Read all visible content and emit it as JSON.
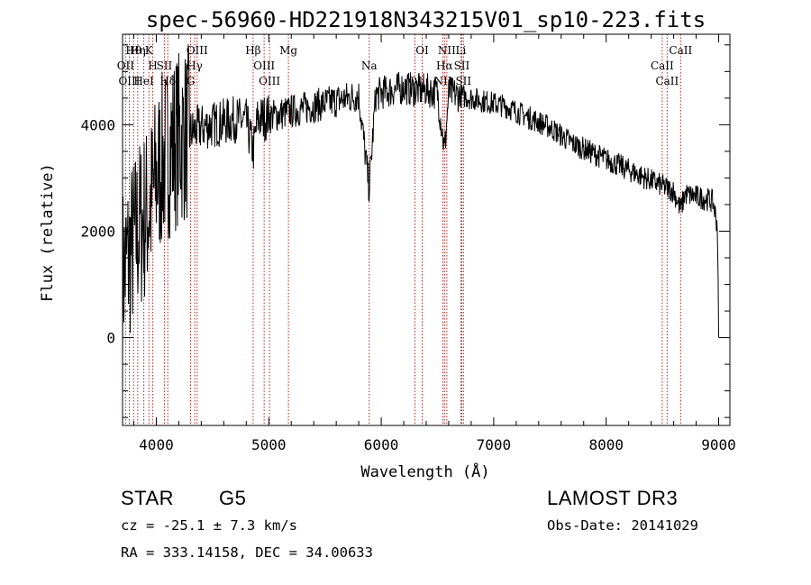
{
  "chart_data": {
    "type": "line",
    "title": "spec-56960-HD221918N343215V01_sp10-223.fits",
    "xlabel": "Wavelength (Å)",
    "ylabel": "Flux (relative)",
    "xlim": [
      3700,
      9100
    ],
    "ylim": [
      -1650,
      5700
    ],
    "x_ticks": [
      4000,
      5000,
      6000,
      7000,
      8000,
      9000
    ],
    "x_tick_labels": [
      "4000",
      "5000",
      "6000",
      "7000",
      "8000",
      "9000"
    ],
    "y_ticks": [
      0,
      2000,
      4000
    ],
    "y_tick_labels": [
      "0",
      "2000",
      "4000"
    ],
    "grid": false,
    "series": [
      {
        "name": "spectrum",
        "x": [
          3700,
          3750,
          3800,
          3850,
          3900,
          3950,
          4000,
          4050,
          4100,
          4150,
          4200,
          4250,
          4300,
          4350,
          4400,
          4500,
          4600,
          4700,
          4800,
          4862,
          4900,
          5000,
          5100,
          5200,
          5300,
          5400,
          5500,
          5600,
          5700,
          5800,
          5893,
          5950,
          6000,
          6100,
          6200,
          6300,
          6400,
          6500,
          6563,
          6600,
          6700,
          6800,
          6900,
          7000,
          7100,
          7200,
          7300,
          7400,
          7500,
          7600,
          7700,
          7800,
          7900,
          8000,
          8100,
          8200,
          8300,
          8400,
          8500,
          8600,
          8662,
          8700,
          8800,
          8900,
          8950,
          8990,
          9000
        ],
        "y": [
          1200,
          1500,
          1800,
          2100,
          2300,
          2500,
          3000,
          3300,
          3500,
          3650,
          3750,
          3800,
          3850,
          3900,
          3950,
          4000,
          4050,
          4100,
          4050,
          3500,
          4100,
          4150,
          4200,
          4250,
          4300,
          4350,
          4400,
          4450,
          4500,
          4550,
          2800,
          4550,
          4600,
          4650,
          4700,
          4650,
          4650,
          4600,
          3500,
          4600,
          4550,
          4500,
          4450,
          4400,
          4350,
          4250,
          4150,
          4050,
          3950,
          3800,
          3650,
          3550,
          3450,
          3350,
          3250,
          3150,
          3050,
          2950,
          2850,
          2750,
          2400,
          2700,
          2650,
          2600,
          2550,
          2100,
          0
        ]
      }
    ],
    "line_markers": [
      {
        "name": "Hθ",
        "x": 3798
      },
      {
        "name": "OII",
        "x": 3727
      },
      {
        "name": "OIII",
        "x": 3760
      },
      {
        "name": "K",
        "x": 3934
      },
      {
        "name": "H",
        "x": 3969
      },
      {
        "name": "HeI",
        "x": 3889
      },
      {
        "name": "Hη",
        "x": 3835
      },
      {
        "name": "SII",
        "x": 4072
      },
      {
        "name": "Hδ",
        "x": 4102
      },
      {
        "name": "OIII",
        "x": 4363
      },
      {
        "name": "Hγ",
        "x": 4341
      },
      {
        "name": "G",
        "x": 4305
      },
      {
        "name": "Hβ",
        "x": 4861
      },
      {
        "name": "OIII",
        "x": 4959
      },
      {
        "name": "OIII",
        "x": 5007
      },
      {
        "name": "Mg",
        "x": 5175
      },
      {
        "name": "Na",
        "x": 5893
      },
      {
        "name": "OI",
        "x": 6300
      },
      {
        "name": "OI",
        "x": 6364
      },
      {
        "name": "Hα",
        "x": 6563
      },
      {
        "name": "NII",
        "x": 6548
      },
      {
        "name": "NII",
        "x": 6583
      },
      {
        "name": "SII",
        "x": 6716
      },
      {
        "name": "SII",
        "x": 6731
      },
      {
        "name": "Li",
        "x": 6708
      },
      {
        "name": "CaII",
        "x": 8498
      },
      {
        "name": "CaII",
        "x": 8542
      },
      {
        "name": "CaII",
        "x": 8662
      }
    ]
  },
  "info": {
    "object_type": "STAR",
    "subclass": "G5",
    "survey": "LAMOST DR3",
    "cz": "cz = -25.1 ± 7.3 km/s",
    "obs_date": "Obs-Date: 20141029",
    "coords": "RA = 333.14158, DEC =  34.00633"
  },
  "colors": {
    "line": "#000000",
    "marker": "#b22222",
    "axis": "#000000"
  }
}
